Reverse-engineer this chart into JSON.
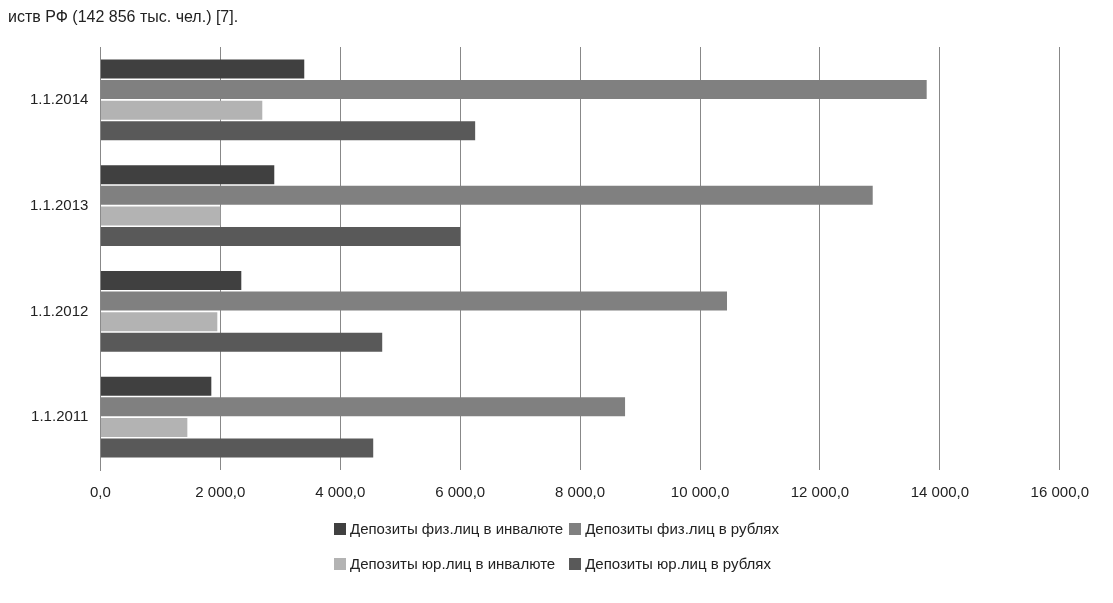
{
  "chart_data": {
    "type": "bar",
    "orientation": "horizontal",
    "annotations": [
      "иств РФ (142 856 тыс. чел.) [7]."
    ],
    "categories": [
      "1.1.2014",
      "1.1.2013",
      "1.1.2012",
      "1.1.2011"
    ],
    "series": [
      {
        "name": "Депозиты физ.лиц в инвалюте",
        "color": "#404040",
        "values": [
          3400,
          2900,
          2350,
          1850
        ]
      },
      {
        "name": "Депозиты физ.лиц в рублях",
        "color": "#808080",
        "values": [
          13780,
          12880,
          10450,
          8750
        ]
      },
      {
        "name": "Депозиты юр.лиц в инвалюте",
        "color": "#b3b3b3",
        "values": [
          2700,
          2000,
          1950,
          1450
        ]
      },
      {
        "name": "Депозиты юр.лиц в рублях",
        "color": "#595959",
        "values": [
          6250,
          6000,
          4700,
          4550
        ]
      }
    ],
    "xlim": [
      0,
      16000
    ],
    "xticks": [
      {
        "value": 0,
        "label": "0,0"
      },
      {
        "value": 2000,
        "label": "2 000,0"
      },
      {
        "value": 4000,
        "label": "4 000,0"
      },
      {
        "value": 6000,
        "label": "6 000,0"
      },
      {
        "value": 8000,
        "label": "8 000,0"
      },
      {
        "value": 10000,
        "label": "10 000,0"
      },
      {
        "value": 12000,
        "label": "12 000,0"
      },
      {
        "value": 14000,
        "label": "14 000,0"
      },
      {
        "value": 16000,
        "label": "16 000,0"
      }
    ],
    "grid": "x",
    "legend": "bottom"
  }
}
